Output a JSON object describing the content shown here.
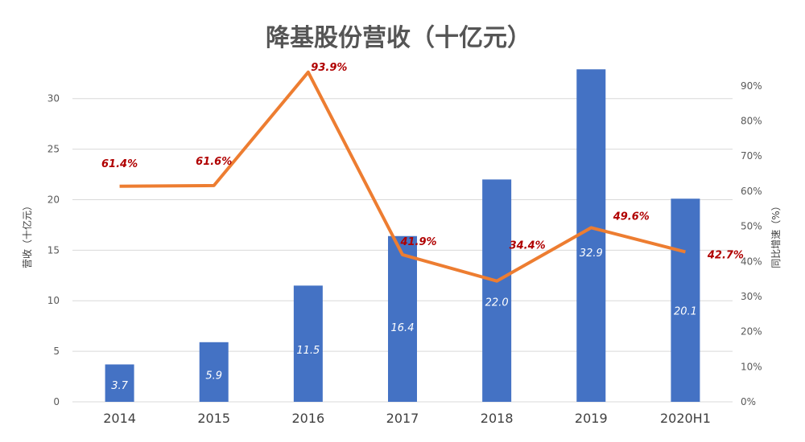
{
  "chart_data": {
    "type": "bar+line",
    "title": "降基股份营收（十亿元）",
    "categories": [
      "2014",
      "2015",
      "2016",
      "2017",
      "2018",
      "2019",
      "2020H1"
    ],
    "ylabel": "营收（十亿元）",
    "y2label": "同比增速（%）",
    "ylim": [
      0,
      33
    ],
    "y2lim": [
      0,
      0.95
    ],
    "yticks": [
      "0",
      "5",
      "10",
      "15",
      "20",
      "25",
      "30"
    ],
    "y2ticks": [
      "0%",
      "10%",
      "20%",
      "30%",
      "40%",
      "50%",
      "60%",
      "70%",
      "80%",
      "90%"
    ],
    "grid": true,
    "legend": "none",
    "series": [
      {
        "type": "bar",
        "color": "#4472c4",
        "values": [
          3.7,
          5.9,
          11.5,
          16.4,
          22.0,
          32.9,
          20.1
        ],
        "labels": [
          "3.7",
          "5.9",
          "11.5",
          "16.4",
          "22.0",
          "32.9",
          "20.1"
        ]
      },
      {
        "type": "line",
        "axis": "right",
        "color": "#ed7d31",
        "values": [
          0.614,
          0.616,
          0.939,
          0.419,
          0.344,
          0.496,
          0.427
        ],
        "labels": [
          "61.4%",
          "61.6%",
          "93.9%",
          "41.9%",
          "34.4%",
          "49.6%",
          "42.7%"
        ]
      }
    ]
  }
}
